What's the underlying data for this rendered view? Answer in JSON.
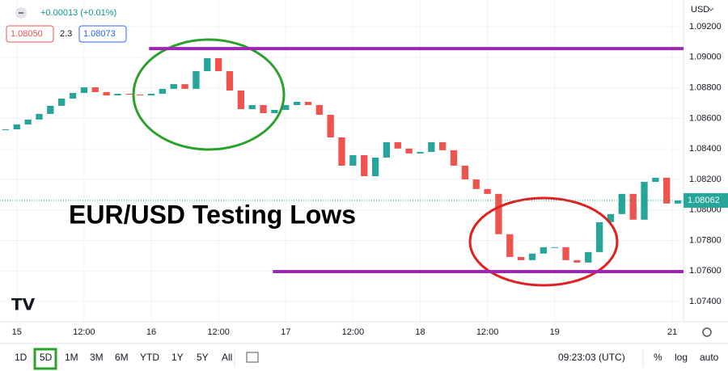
{
  "chart_data": {
    "type": "candlestick",
    "annotation": "EUR/USD Testing Lows",
    "currency": "USD",
    "x": [
      -2,
      0,
      2,
      4,
      6,
      8,
      10,
      12,
      14,
      16,
      18,
      20,
      22,
      24,
      26,
      28,
      30,
      32,
      34,
      36,
      38,
      40,
      42,
      44,
      46,
      48,
      50,
      52,
      54,
      56,
      58,
      60,
      62,
      64,
      66,
      68,
      70,
      72,
      74,
      76,
      78,
      80,
      82,
      84,
      86,
      88,
      90,
      92,
      94,
      96,
      98,
      100,
      102,
      104,
      106,
      108,
      110,
      112,
      114,
      116,
      118
    ],
    "values": [
      1.08528,
      1.0856,
      1.08592,
      1.08629,
      1.08682,
      1.08729,
      1.08766,
      1.08803,
      1.08772,
      1.0875,
      1.08761,
      1.08756,
      1.0875,
      1.08761,
      1.08793,
      1.08824,
      1.08793,
      1.08909,
      1.08994,
      1.08909,
      1.08782,
      1.0866,
      1.08687,
      1.08634,
      1.08655,
      1.08687,
      1.08708,
      1.08687,
      1.08623,
      1.08475,
      1.0829,
      1.08359,
      1.08221,
      1.08343,
      1.08444,
      1.08402,
      1.0837,
      1.0838,
      1.08444,
      1.08391,
      1.0829,
      1.082,
      1.08137,
      1.08105,
      1.07841,
      1.07692,
      1.07671,
      1.07714,
      1.07756,
      1.07756,
      1.07671,
      1.07655,
      1.07724,
      1.0792,
      1.07973,
      1.08105,
      1.07936,
      1.08184,
      1.08211,
      1.08042,
      1.08062
    ],
    "up_color": "#26a69a",
    "down_color": "#ef5350",
    "xlim": [
      -3,
      119
    ],
    "ylim": [
      1.07268,
      1.09375
    ],
    "yticks": [
      {
        "value": 1.092,
        "label": "1.09200"
      },
      {
        "value": 1.09,
        "label": "1.09000"
      },
      {
        "value": 1.088,
        "label": "1.08800"
      },
      {
        "value": 1.086,
        "label": "1.08600"
      },
      {
        "value": 1.084,
        "label": "1.08400"
      },
      {
        "value": 1.082,
        "label": "1.08200"
      },
      {
        "value": 1.08,
        "label": "1.08000"
      },
      {
        "value": 1.078,
        "label": "1.07800"
      },
      {
        "value": 1.076,
        "label": "1.07600"
      },
      {
        "value": 1.074,
        "label": "1.07400"
      }
    ],
    "xticks": [
      {
        "value": 0,
        "label": "15"
      },
      {
        "value": 12,
        "label": "12:00"
      },
      {
        "value": 24,
        "label": "16"
      },
      {
        "value": 36,
        "label": "12:00"
      },
      {
        "value": 48,
        "label": "17"
      },
      {
        "value": 60,
        "label": "12:00"
      },
      {
        "value": 72,
        "label": "18"
      },
      {
        "value": 84,
        "label": "12:00"
      },
      {
        "value": 96,
        "label": "19"
      },
      {
        "value": 117,
        "label": "21"
      }
    ],
    "grid": true,
    "levels": [
      {
        "value": 1.09057,
        "start": 23.6
      },
      {
        "value": 1.07596,
        "start": 45.7
      }
    ],
    "level_color": "#9c27b0"
  },
  "ui": {
    "change": "+0.00013 (+0.01%)",
    "bid": "1.08050",
    "spread": "2.3",
    "ask": "1.08073",
    "ranges": [
      "1D",
      "5D",
      "1M",
      "3M",
      "6M",
      "YTD",
      "1Y",
      "5Y",
      "All"
    ],
    "active_range": 1,
    "clock": "09:23:03 (UTC)",
    "percent": "%",
    "log": "log",
    "auto": "auto"
  }
}
